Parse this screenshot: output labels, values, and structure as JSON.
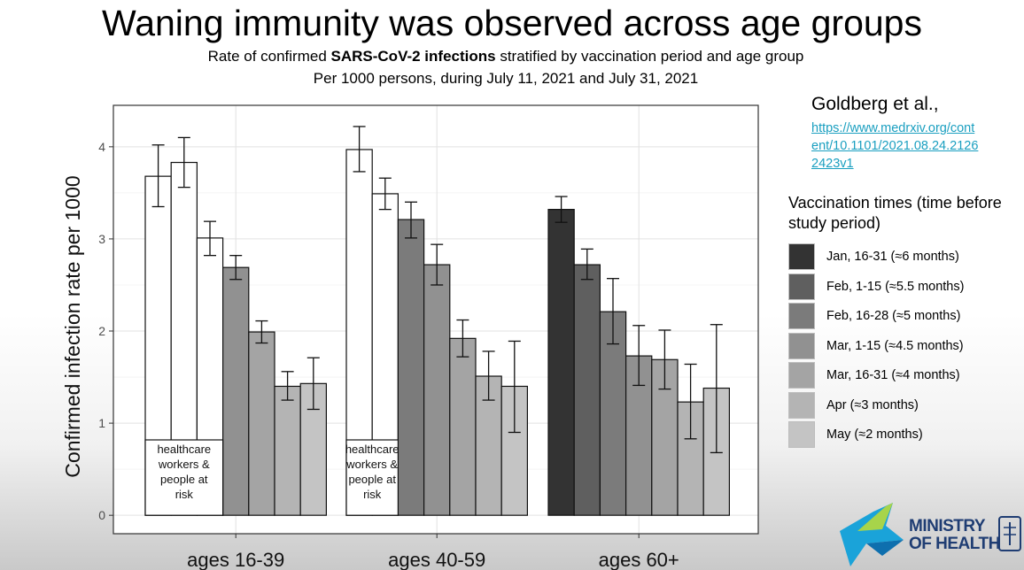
{
  "title": "Waning immunity was observed across age groups",
  "subtitle": {
    "prefix": "Rate of confirmed ",
    "bold": "SARS-CoV-2 infections",
    "suffix": " stratified by vaccination period and age group",
    "line2": "Per 1000 persons, during July 11, 2021 and July 31, 2021"
  },
  "reference": {
    "author": "Goldberg et al.,",
    "url": "https://www.medrxiv.org/content/10.1101/2021.08.24.21262423v1"
  },
  "legend": {
    "title": "Vaccination times (time before study period)",
    "items": [
      {
        "label": "Jan, 16-31 (≈6 months)",
        "color": "#333333"
      },
      {
        "label": "Feb, 1-15 (≈5.5 months)",
        "color": "#5f5f5f"
      },
      {
        "label": "Feb, 16-28 (≈5 months)",
        "color": "#7b7b7b"
      },
      {
        "label": "Mar, 1-15 (≈4.5 months)",
        "color": "#919191"
      },
      {
        "label": "Mar, 16-31 (≈4 months)",
        "color": "#a4a4a4"
      },
      {
        "label": "Apr (≈3 months)",
        "color": "#b4b4b4"
      },
      {
        "label": "May (≈2 months)",
        "color": "#c4c4c4"
      }
    ]
  },
  "logo": {
    "line1": "MINISTRY",
    "line2": "OF HEALTH"
  },
  "chart_data": {
    "type": "bar",
    "ylabel": "Confirmed infection rate per 1000",
    "xlabel": "",
    "ylim": [
      -0.2,
      4.45
    ],
    "yticks": [
      0,
      1,
      2,
      3,
      4
    ],
    "grid": true,
    "legend_position": "right",
    "categories": [
      "ages 16-39",
      "ages 40-59",
      "ages 60+"
    ],
    "annotation": "healthcare workers & people at risk",
    "groups": [
      {
        "category": "ages 16-39",
        "bars": [
          {
            "period": "Jan, 16-31",
            "value": 3.68,
            "ci": [
              3.35,
              4.02
            ],
            "special": true
          },
          {
            "period": "Feb, 1-15",
            "value": 3.83,
            "ci": [
              3.56,
              4.1
            ],
            "special": true
          },
          {
            "period": "Feb, 16-28",
            "value": 3.01,
            "ci": [
              2.82,
              3.19
            ],
            "special": true
          },
          {
            "period": "Mar, 1-15",
            "value": 2.69,
            "ci": [
              2.56,
              2.82
            ]
          },
          {
            "period": "Mar, 16-31",
            "value": 1.99,
            "ci": [
              1.87,
              2.11
            ]
          },
          {
            "period": "Apr",
            "value": 1.4,
            "ci": [
              1.25,
              1.56
            ]
          },
          {
            "period": "May",
            "value": 1.43,
            "ci": [
              1.15,
              1.71
            ]
          }
        ]
      },
      {
        "category": "ages 40-59",
        "bars": [
          {
            "period": "Jan, 16-31",
            "value": 3.97,
            "ci": [
              3.73,
              4.22
            ],
            "special": true
          },
          {
            "period": "Feb, 1-15",
            "value": 3.49,
            "ci": [
              3.32,
              3.66
            ],
            "special": true
          },
          {
            "period": "Feb, 16-28",
            "value": 3.21,
            "ci": [
              3.01,
              3.4
            ]
          },
          {
            "period": "Mar, 1-15",
            "value": 2.72,
            "ci": [
              2.5,
              2.94
            ]
          },
          {
            "period": "Mar, 16-31",
            "value": 1.92,
            "ci": [
              1.72,
              2.12
            ]
          },
          {
            "period": "Apr",
            "value": 1.51,
            "ci": [
              1.25,
              1.78
            ]
          },
          {
            "period": "May",
            "value": 1.4,
            "ci": [
              0.9,
              1.89
            ]
          }
        ]
      },
      {
        "category": "ages 60+",
        "bars": [
          {
            "period": "Jan, 16-31",
            "value": 3.32,
            "ci": [
              3.18,
              3.46
            ]
          },
          {
            "period": "Feb, 1-15",
            "value": 2.72,
            "ci": [
              2.56,
              2.89
            ]
          },
          {
            "period": "Feb, 16-28",
            "value": 2.21,
            "ci": [
              1.86,
              2.57
            ]
          },
          {
            "period": "Mar, 1-15",
            "value": 1.73,
            "ci": [
              1.41,
              2.06
            ]
          },
          {
            "period": "Mar, 16-31",
            "value": 1.69,
            "ci": [
              1.37,
              2.01
            ]
          },
          {
            "period": "Apr",
            "value": 1.23,
            "ci": [
              0.83,
              1.64
            ]
          },
          {
            "period": "May",
            "value": 1.38,
            "ci": [
              0.68,
              2.07
            ]
          }
        ]
      }
    ]
  }
}
